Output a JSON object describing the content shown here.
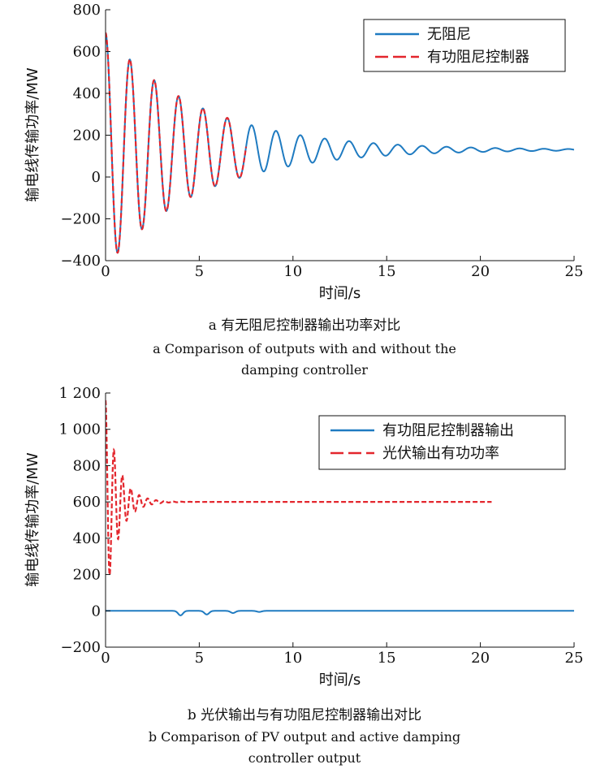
{
  "chart_data": [
    {
      "type": "line",
      "xlabel": "时间/s",
      "ylabel": "输电线传输功率/MW",
      "xlim": [
        0,
        25
      ],
      "ylim": [
        -400,
        800
      ],
      "xticks": [
        "0",
        "5",
        "10",
        "15",
        "20",
        "25"
      ],
      "yticks": [
        "800",
        "600",
        "400",
        "200",
        "0",
        "−200",
        "−400"
      ],
      "legend_position": "top-right",
      "grid": false,
      "series": [
        {
          "name": "无阻尼",
          "color": "#1f7bc1",
          "style": "solid",
          "t_end": 25,
          "oscillation": {
            "offset": 130,
            "amplitude": 560,
            "period": 1.3,
            "decay": 0.2,
            "phase": 1.57
          }
        },
        {
          "name": "有功阻尼控制器",
          "color": "#e3262d",
          "style": "dashed",
          "t_end": 7.5,
          "oscillation": {
            "offset": 130,
            "amplitude": 560,
            "period": 1.3,
            "decay": 0.2,
            "phase": 1.57
          }
        }
      ],
      "caption_zh": "a  有无阻尼控制器输出功率对比",
      "caption_en": [
        "a  Comparison of outputs with and without the",
        "damping controller"
      ]
    },
    {
      "type": "line",
      "xlabel": "时间/s",
      "ylabel": "输电线传输功率/MW",
      "xlim": [
        0,
        25
      ],
      "ylim": [
        -200,
        1200
      ],
      "xticks": [
        "0",
        "5",
        "10",
        "15",
        "20",
        "25"
      ],
      "yticks": [
        "1 200",
        "1 000",
        "800",
        "600",
        "400",
        "200",
        "0",
        "−200"
      ],
      "legend_position": "top-right",
      "grid": false,
      "series": [
        {
          "name": "有功阻尼控制器输出",
          "color": "#1f7bc1",
          "style": "solid",
          "t_end": 25,
          "bumps": [
            [
              4.0,
              -25
            ],
            [
              5.4,
              -20
            ],
            [
              6.8,
              -12
            ],
            [
              8.2,
              -6
            ]
          ]
        },
        {
          "name": "光伏输出有功功率",
          "color": "#e3262d",
          "style": "dashed",
          "t_end": 20.6,
          "oscillation": {
            "offset": 600,
            "amplitude": 560,
            "period": 0.45,
            "decay": 1.5,
            "phase": 1.57
          }
        }
      ],
      "caption_zh": "b  光伏输出与有功阻尼控制器输出对比",
      "caption_en": [
        "b  Comparison of PV output and active damping",
        "controller output"
      ]
    }
  ]
}
